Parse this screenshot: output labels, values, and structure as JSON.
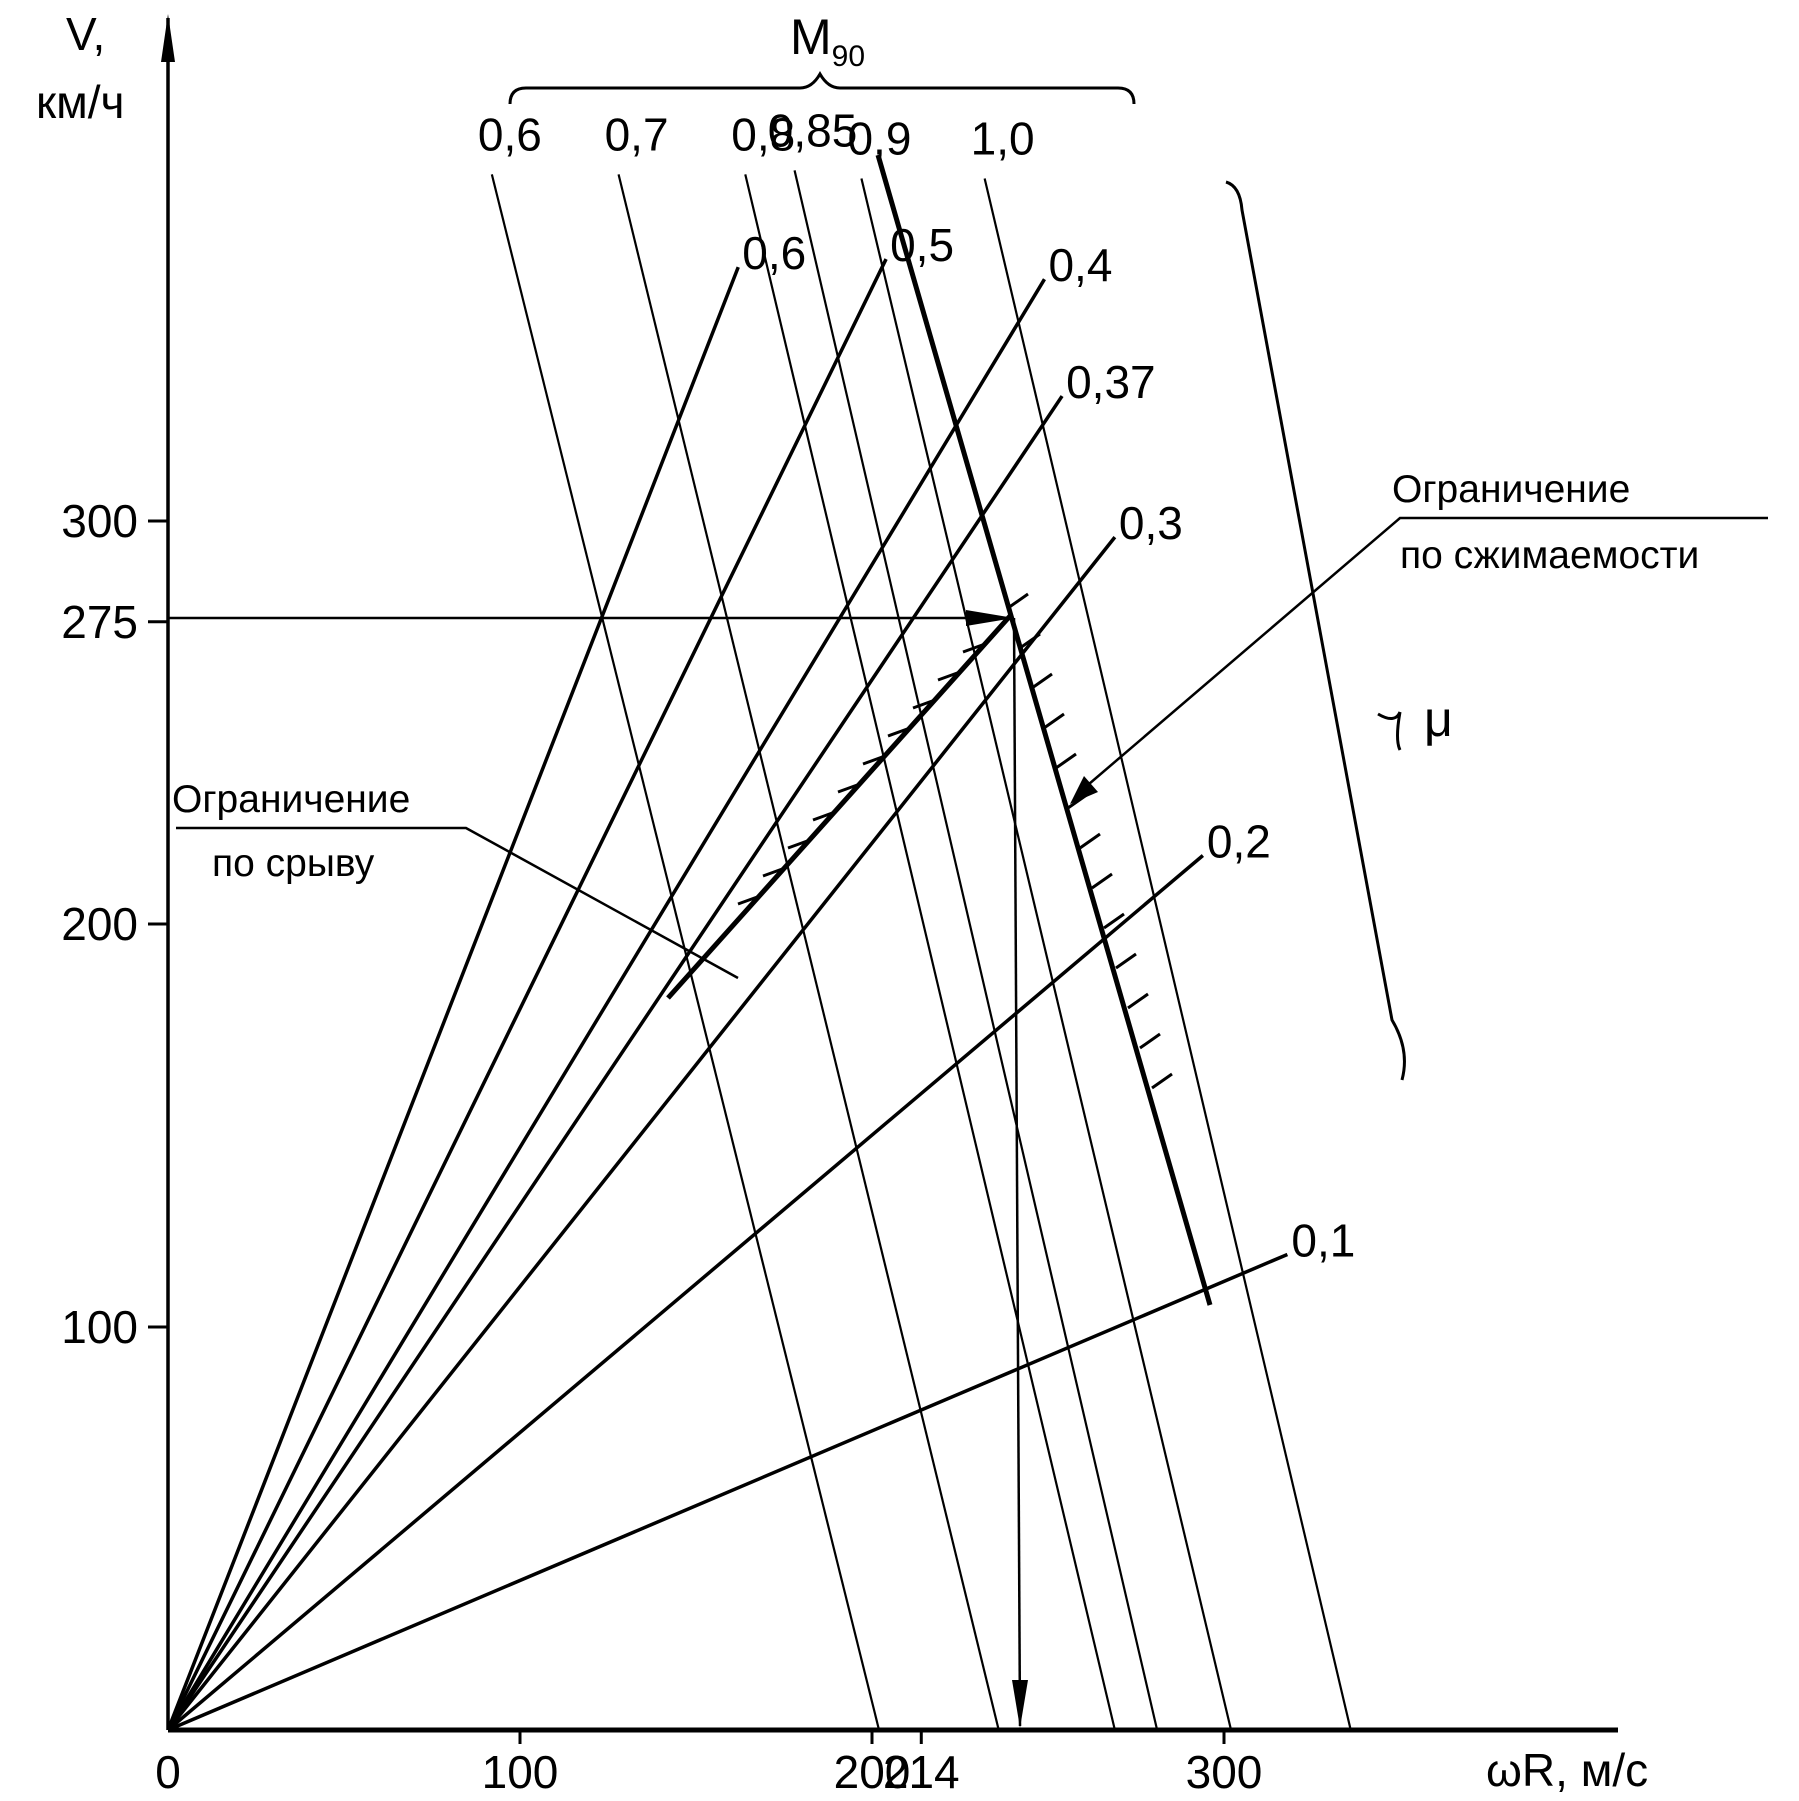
{
  "chart_data": {
    "type": "line",
    "title": "",
    "ylabel": "V,",
    "ylabel_unit": "км/ч",
    "xlabel": "ωR, м/с",
    "xlim": [
      0,
      360
    ],
    "ylim": [
      0,
      400
    ],
    "x_ticks": [
      {
        "value": 0,
        "label": "0"
      },
      {
        "value": 100,
        "label": "100"
      },
      {
        "value": 200,
        "label": "200"
      },
      {
        "value": 214,
        "label": "214"
      },
      {
        "value": 300,
        "label": "300"
      }
    ],
    "y_ticks": [
      {
        "value": 100,
        "label": "100"
      },
      {
        "value": 200,
        "label": "200"
      },
      {
        "value": 275,
        "label": "275"
      },
      {
        "value": 300,
        "label": "300"
      }
    ],
    "mu_group_label": "μ",
    "mu_lines": [
      {
        "label": "0,6",
        "end": [
          162,
          363
        ]
      },
      {
        "label": "0,5",
        "end": [
          204,
          365
        ]
      },
      {
        "label": "0,4",
        "end": [
          249,
          360
        ]
      },
      {
        "label": "0,37",
        "end": [
          254,
          331
        ]
      },
      {
        "label": "0,3",
        "end": [
          269,
          296
        ]
      },
      {
        "label": "0,2",
        "end": [
          294,
          217
        ]
      },
      {
        "label": "0,1",
        "end": [
          318,
          118
        ]
      }
    ],
    "m90_group_label": "M",
    "m90_group_sub": "90",
    "m90_lines": [
      {
        "label": "0,6",
        "top": [
          92,
          386
        ],
        "bottom": [
          202,
          0
        ]
      },
      {
        "label": "0,7",
        "top": [
          128,
          386
        ],
        "bottom": [
          236,
          0
        ]
      },
      {
        "label": "0,8",
        "top": [
          164,
          386
        ],
        "bottom": [
          269,
          0
        ]
      },
      {
        "label": "0,85",
        "top": [
          178,
          387
        ],
        "bottom": [
          281,
          0
        ]
      },
      {
        "label": "0,9",
        "top": [
          197,
          385
        ],
        "bottom": [
          302,
          0
        ]
      },
      {
        "label": "1,0",
        "top": [
          232,
          385
        ],
        "bottom": [
          336,
          0
        ]
      }
    ],
    "operating_point": {
      "x": 214,
      "y": 275
    },
    "stall_limit_label": "Ограничение\nпо срыву",
    "compress_limit_label": "Ограничение\nпо сжимаемости"
  }
}
